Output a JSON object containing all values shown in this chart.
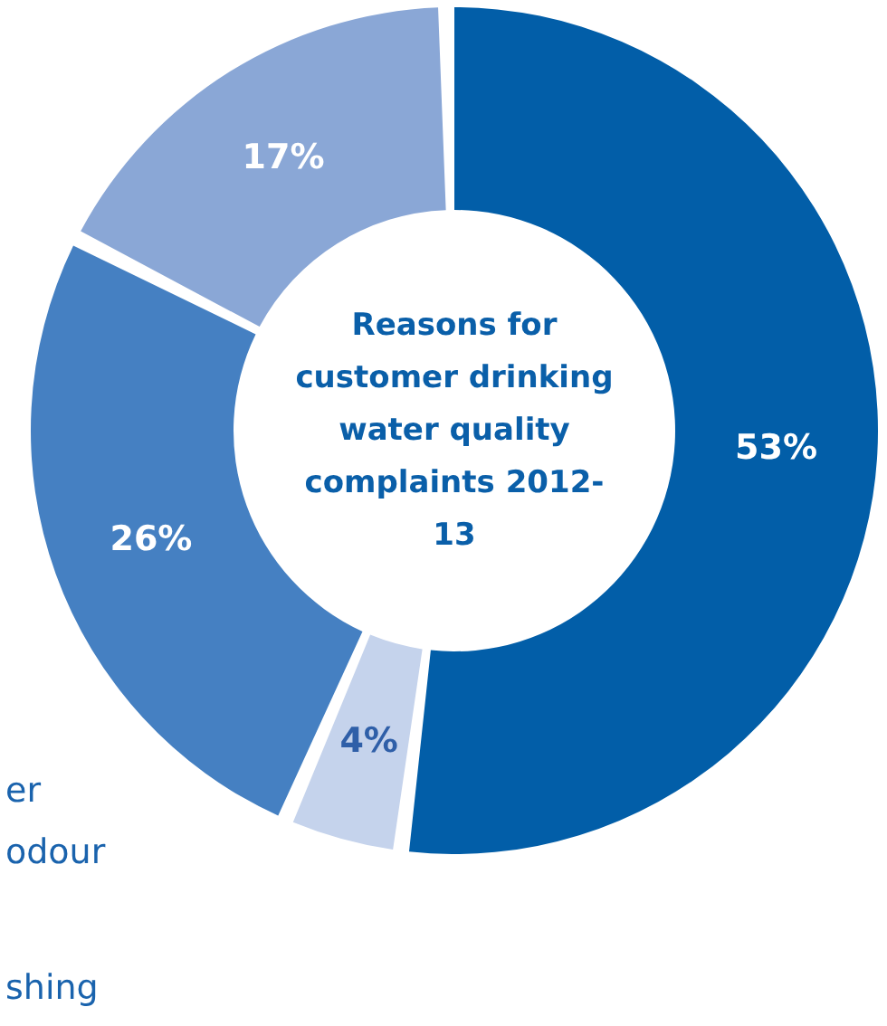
{
  "chart_data": {
    "type": "donut",
    "title": "Reasons for customer drinking water quality complaints 2012-13",
    "categories": [
      null,
      null,
      null,
      null
    ],
    "values": [
      53,
      4,
      26,
      17
    ],
    "colors": [
      "#025ea8",
      "#c5d3ec",
      "#4580c2",
      "#8aa7d6"
    ],
    "value_labels": [
      "53%",
      "4%",
      "26%",
      "17%"
    ],
    "annotations": [
      "er",
      "odour",
      "shing"
    ]
  }
}
